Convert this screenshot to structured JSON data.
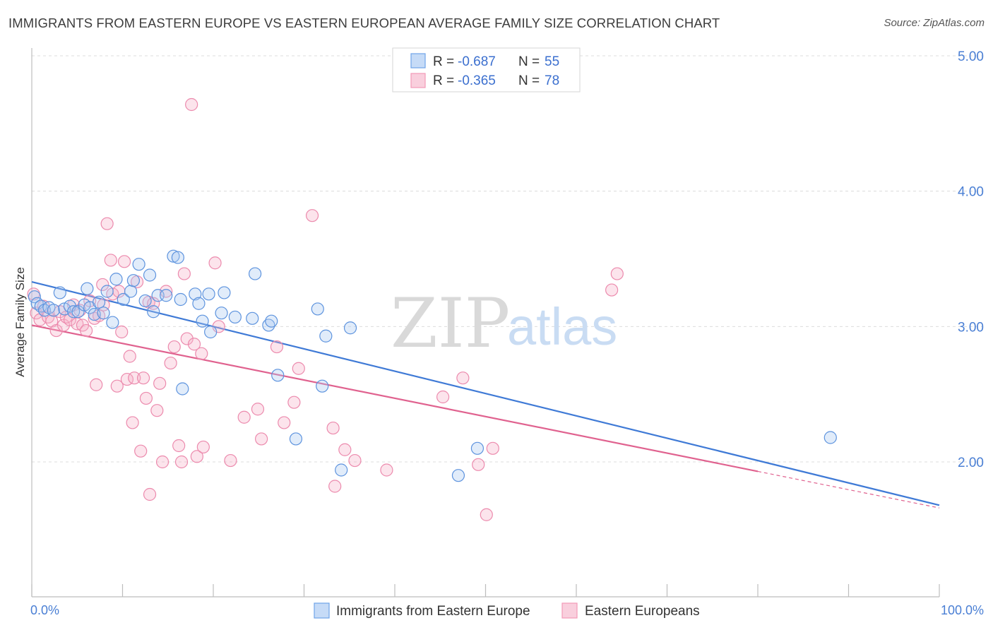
{
  "title": "IMMIGRANTS FROM EASTERN EUROPE VS EASTERN EUROPEAN AVERAGE FAMILY SIZE CORRELATION CHART",
  "source": "Source: ZipAtlas.com",
  "watermark": {
    "zip": "ZIP",
    "atlas": "atlas"
  },
  "colors": {
    "blue": "#6fa3e8",
    "blue_line": "#3f7ad6",
    "pink": "#f29ab8",
    "pink_line": "#e0628f",
    "tick_text": "#4a7fd4"
  },
  "legend": {
    "row1": {
      "r_label": "R = ",
      "r_value": "-0.687",
      "n_label": "N = ",
      "n_value": "55"
    },
    "row2": {
      "r_label": "R = ",
      "r_value": "-0.365",
      "n_label": "N = ",
      "n_value": "78"
    }
  },
  "bottom_legend": {
    "series1": "Immigrants from Eastern Europe",
    "series2": "Eastern Europeans"
  },
  "chart_data": {
    "type": "scatter",
    "title": "IMMIGRANTS FROM EASTERN EUROPE VS EASTERN EUROPEAN AVERAGE FAMILY SIZE CORRELATION CHART",
    "xlabel": "",
    "ylabel": "Average Family Size",
    "xlim": [
      0,
      100
    ],
    "ylim": [
      1.0,
      5.15
    ],
    "x_tick_labels": [
      "0.0%",
      "100.0%"
    ],
    "y_ticks": [
      2.0,
      3.0,
      4.0,
      5.0
    ],
    "y_tick_labels": [
      "2.00",
      "3.00",
      "4.00",
      "5.00"
    ],
    "grid": true,
    "legend_position": "top-center",
    "series": [
      {
        "name": "Immigrants from Eastern Europe",
        "color": "#6fa3e8",
        "r": -0.687,
        "n": 55,
        "trend": {
          "x0": 0,
          "y0": 3.33,
          "x1": 100,
          "y1": 1.68
        },
        "points": [
          [
            0.3,
            3.22
          ],
          [
            0.6,
            3.17
          ],
          [
            1.0,
            3.15
          ],
          [
            1.4,
            3.12
          ],
          [
            1.9,
            3.14
          ],
          [
            2.4,
            3.12
          ],
          [
            3.1,
            3.25
          ],
          [
            3.6,
            3.13
          ],
          [
            4.2,
            3.15
          ],
          [
            4.6,
            3.11
          ],
          [
            5.1,
            3.11
          ],
          [
            5.8,
            3.16
          ],
          [
            6.1,
            3.28
          ],
          [
            6.4,
            3.14
          ],
          [
            6.9,
            3.09
          ],
          [
            7.4,
            3.18
          ],
          [
            7.9,
            3.1
          ],
          [
            8.3,
            3.26
          ],
          [
            8.9,
            3.03
          ],
          [
            9.3,
            3.35
          ],
          [
            10.1,
            3.2
          ],
          [
            10.9,
            3.26
          ],
          [
            11.2,
            3.34
          ],
          [
            11.8,
            3.46
          ],
          [
            12.5,
            3.19
          ],
          [
            13.0,
            3.38
          ],
          [
            13.4,
            3.11
          ],
          [
            13.9,
            3.23
          ],
          [
            14.8,
            3.23
          ],
          [
            15.6,
            3.52
          ],
          [
            16.1,
            3.51
          ],
          [
            16.4,
            3.2
          ],
          [
            16.6,
            2.54
          ],
          [
            18.0,
            3.24
          ],
          [
            18.4,
            3.17
          ],
          [
            18.8,
            3.04
          ],
          [
            19.5,
            3.24
          ],
          [
            19.7,
            2.96
          ],
          [
            20.9,
            3.1
          ],
          [
            21.2,
            3.25
          ],
          [
            22.4,
            3.07
          ],
          [
            24.6,
            3.39
          ],
          [
            24.3,
            3.06
          ],
          [
            26.1,
            3.01
          ],
          [
            26.4,
            3.04
          ],
          [
            27.1,
            2.64
          ],
          [
            29.1,
            2.17
          ],
          [
            31.5,
            3.13
          ],
          [
            32.0,
            2.56
          ],
          [
            32.4,
            2.93
          ],
          [
            34.1,
            1.94
          ],
          [
            35.1,
            2.99
          ],
          [
            47.0,
            1.9
          ],
          [
            49.1,
            2.1
          ],
          [
            88.0,
            2.18
          ]
        ]
      },
      {
        "name": "Eastern Europeans",
        "color": "#f29ab8",
        "r": -0.365,
        "n": 78,
        "trend": {
          "x0": 0,
          "y0": 3.01,
          "x1": 80,
          "y1": 1.93
        },
        "trend_dashed": {
          "x0": 80,
          "y0": 1.93,
          "x1": 100,
          "y1": 1.66
        },
        "points": [
          [
            0.2,
            3.24
          ],
          [
            0.5,
            3.1
          ],
          [
            0.9,
            3.05
          ],
          [
            1.3,
            3.15
          ],
          [
            1.8,
            3.07
          ],
          [
            2.2,
            3.04
          ],
          [
            2.7,
            2.97
          ],
          [
            3.1,
            3.11
          ],
          [
            3.5,
            3.01
          ],
          [
            3.8,
            3.07
          ],
          [
            4.2,
            3.05
          ],
          [
            4.6,
            3.16
          ],
          [
            5.0,
            3.02
          ],
          [
            5.3,
            3.12
          ],
          [
            5.6,
            3.01
          ],
          [
            6.0,
            2.97
          ],
          [
            6.4,
            3.19
          ],
          [
            6.9,
            3.06
          ],
          [
            7.1,
            2.57
          ],
          [
            7.4,
            3.08
          ],
          [
            7.8,
            3.31
          ],
          [
            7.9,
            3.16
          ],
          [
            8.3,
            3.76
          ],
          [
            8.7,
            3.49
          ],
          [
            8.9,
            3.24
          ],
          [
            9.4,
            2.56
          ],
          [
            9.6,
            3.26
          ],
          [
            9.9,
            2.96
          ],
          [
            10.2,
            3.48
          ],
          [
            10.5,
            2.61
          ],
          [
            10.8,
            2.78
          ],
          [
            11.1,
            2.29
          ],
          [
            11.3,
            2.62
          ],
          [
            11.6,
            3.33
          ],
          [
            12.0,
            2.08
          ],
          [
            12.3,
            2.62
          ],
          [
            12.6,
            2.47
          ],
          [
            12.9,
            3.18
          ],
          [
            13.0,
            1.76
          ],
          [
            13.4,
            3.17
          ],
          [
            13.8,
            2.38
          ],
          [
            14.1,
            2.58
          ],
          [
            14.4,
            2.0
          ],
          [
            14.8,
            3.26
          ],
          [
            15.3,
            2.73
          ],
          [
            15.7,
            2.85
          ],
          [
            16.2,
            2.12
          ],
          [
            16.5,
            2.0
          ],
          [
            16.8,
            3.39
          ],
          [
            17.1,
            2.91
          ],
          [
            17.6,
            4.64
          ],
          [
            17.9,
            2.87
          ],
          [
            18.2,
            2.04
          ],
          [
            18.7,
            2.8
          ],
          [
            18.9,
            2.11
          ],
          [
            20.2,
            3.47
          ],
          [
            20.6,
            3.0
          ],
          [
            21.9,
            2.01
          ],
          [
            23.4,
            2.33
          ],
          [
            24.9,
            2.39
          ],
          [
            25.3,
            2.17
          ],
          [
            27.0,
            2.85
          ],
          [
            27.8,
            2.29
          ],
          [
            28.9,
            2.44
          ],
          [
            29.4,
            2.69
          ],
          [
            30.9,
            3.82
          ],
          [
            33.2,
            2.25
          ],
          [
            33.4,
            1.82
          ],
          [
            34.5,
            2.09
          ],
          [
            35.6,
            2.01
          ],
          [
            39.1,
            1.94
          ],
          [
            45.3,
            2.48
          ],
          [
            47.5,
            2.62
          ],
          [
            49.2,
            1.98
          ],
          [
            50.1,
            1.61
          ],
          [
            50.8,
            2.1
          ],
          [
            63.9,
            3.27
          ],
          [
            64.5,
            3.39
          ]
        ]
      }
    ]
  }
}
